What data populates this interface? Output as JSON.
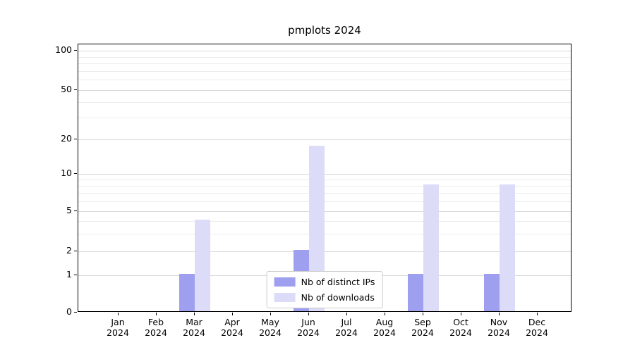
{
  "chart_data": {
    "type": "bar",
    "title": "pmplots 2024",
    "categories": [
      "Jan",
      "Feb",
      "Mar",
      "Apr",
      "May",
      "Jun",
      "Jul",
      "Aug",
      "Sep",
      "Oct",
      "Nov",
      "Dec"
    ],
    "year_label": "2024",
    "series": [
      {
        "name": "Nb of distinct IPs",
        "color": "#9f9ff0",
        "values": [
          0,
          0,
          1,
          0,
          0,
          2,
          0,
          0,
          1,
          0,
          1,
          0
        ]
      },
      {
        "name": "Nb of downloads",
        "color": "#dcdcf9",
        "values": [
          0,
          0,
          4,
          0,
          0,
          17,
          0,
          0,
          8,
          0,
          8,
          0
        ]
      }
    ],
    "yticks": [
      0,
      1,
      2,
      5,
      10,
      20,
      50,
      100
    ],
    "minor_gridlines": [
      3,
      4,
      6,
      7,
      8,
      9,
      30,
      40,
      60,
      70,
      80,
      90
    ],
    "scale": "symlog",
    "grid": true,
    "legend_position": "bottom-center",
    "colors": {
      "major_grid": "#d9d9d9",
      "minor_grid": "#ececec",
      "axis": "#000000",
      "legend_border": "#cccccc",
      "background": "#ffffff"
    }
  }
}
